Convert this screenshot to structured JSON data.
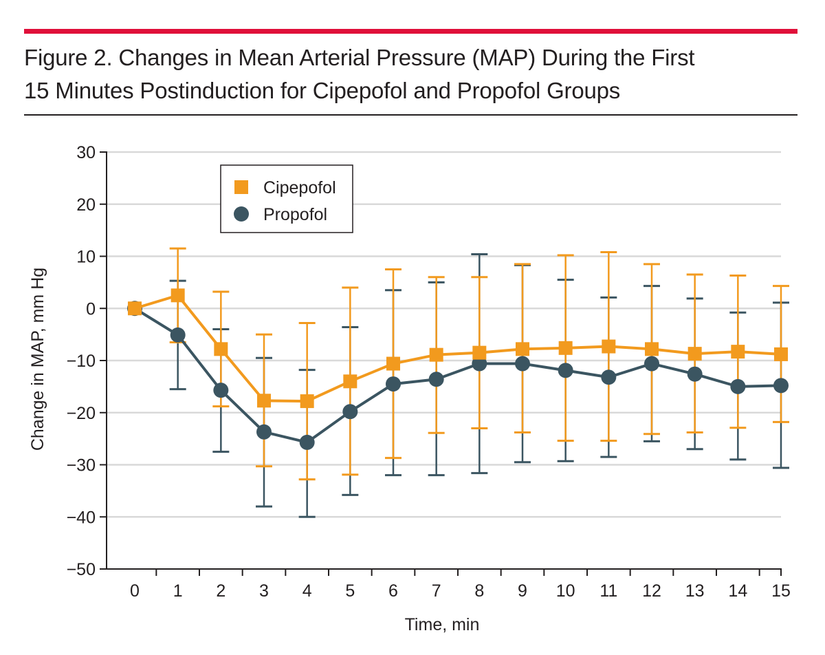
{
  "figure": {
    "title_line1": "Figure 2. Changes in Mean Arterial Pressure (MAP) During the First",
    "title_line2": "15 Minutes Postinduction for Cipepofol and Propofol Groups"
  },
  "chart_data": {
    "type": "line",
    "xlabel": "Time, min",
    "ylabel": "Change in MAP, mm Hg",
    "x": [
      0,
      1,
      2,
      3,
      4,
      5,
      6,
      7,
      8,
      9,
      10,
      11,
      12,
      13,
      14,
      15
    ],
    "xlim": [
      -0.6,
      15
    ],
    "ylim": [
      -50,
      30
    ],
    "yticks": [
      30,
      20,
      10,
      0,
      -10,
      -20,
      -30,
      -40,
      -50
    ],
    "xtick_labels": [
      "0",
      "1",
      "2",
      "3",
      "4",
      "5",
      "6",
      "7",
      "8",
      "9",
      "10",
      "11",
      "12",
      "13",
      "14",
      "15"
    ],
    "ytick_labels": [
      "30",
      "20",
      "10",
      "0",
      "-10",
      "-20",
      "-30",
      "-40",
      "-50"
    ],
    "grid": true,
    "legend_position": "top-left",
    "series": [
      {
        "name": "Cipepofol",
        "marker": "square",
        "color": "#f29a1e",
        "values": [
          0,
          2.5,
          -7.8,
          -17.7,
          -17.8,
          -14.0,
          -10.6,
          -8.9,
          -8.5,
          -7.8,
          -7.6,
          -7.3,
          -7.8,
          -8.7,
          -8.3,
          -8.8
        ],
        "err_upper": [
          0,
          11.5,
          3.2,
          -5.0,
          -2.8,
          4.0,
          7.5,
          6.0,
          6.0,
          8.5,
          10.2,
          10.8,
          8.5,
          6.5,
          6.3,
          4.3
        ],
        "err_lower": [
          0,
          -6.5,
          -18.8,
          -30.3,
          -32.8,
          -31.9,
          -28.7,
          -23.9,
          -23.0,
          -23.8,
          -25.4,
          -25.4,
          -24.1,
          -23.8,
          -22.9,
          -21.8
        ]
      },
      {
        "name": "Propofol",
        "marker": "circle",
        "color": "#3b5561",
        "values": [
          0,
          -5.1,
          -15.7,
          -23.7,
          -25.7,
          -19.8,
          -14.5,
          -13.6,
          -10.6,
          -10.6,
          -11.9,
          -13.2,
          -10.6,
          -12.6,
          -15.0,
          -14.8
        ],
        "err_upper": [
          0,
          5.3,
          -4.0,
          -9.5,
          -11.8,
          -3.6,
          3.5,
          5.0,
          10.4,
          8.3,
          5.5,
          2.1,
          4.3,
          1.9,
          -0.8,
          1.1
        ],
        "err_lower": [
          0,
          -15.5,
          -27.5,
          -38.0,
          -40.0,
          -35.8,
          -32.0,
          -32.0,
          -31.6,
          -29.5,
          -29.3,
          -28.5,
          -25.5,
          -27.0,
          -29.0,
          -30.6
        ]
      }
    ]
  }
}
